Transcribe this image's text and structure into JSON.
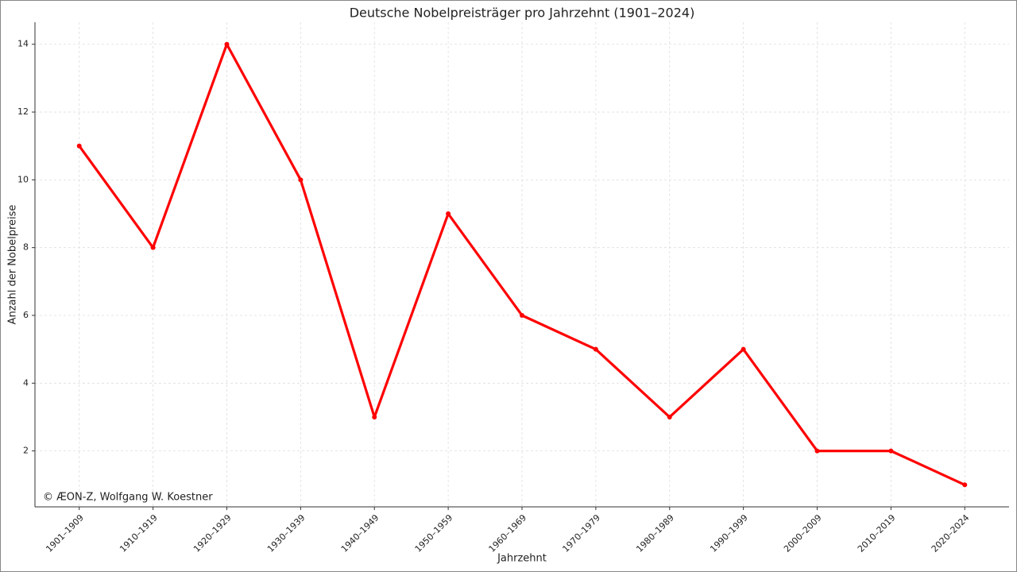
{
  "chart_data": {
    "type": "line",
    "title": "Deutsche Nobelpreisträger pro Jahrzehnt (1901–2024)",
    "x_label": "Jahrzehnt",
    "y_label": "Anzahl der Nobelpreise",
    "annotation": "© ÆON-Z, Wolfgang W. Koestner",
    "categories": [
      "1901–1909",
      "1910–1919",
      "1920–1929",
      "1930–1939",
      "1940–1949",
      "1950–1959",
      "1960–1969",
      "1970–1979",
      "1980–1989",
      "1990–1999",
      "2000–2009",
      "2010–2019",
      "2020–2024"
    ],
    "values": [
      11,
      8,
      14,
      10,
      3,
      9,
      6,
      5,
      3,
      5,
      2,
      2,
      1
    ],
    "color": "#ff0000",
    "ylim": [
      0.35,
      14.65
    ],
    "yticks": [
      2,
      4,
      6,
      8,
      10,
      12,
      14
    ],
    "grid": true
  }
}
